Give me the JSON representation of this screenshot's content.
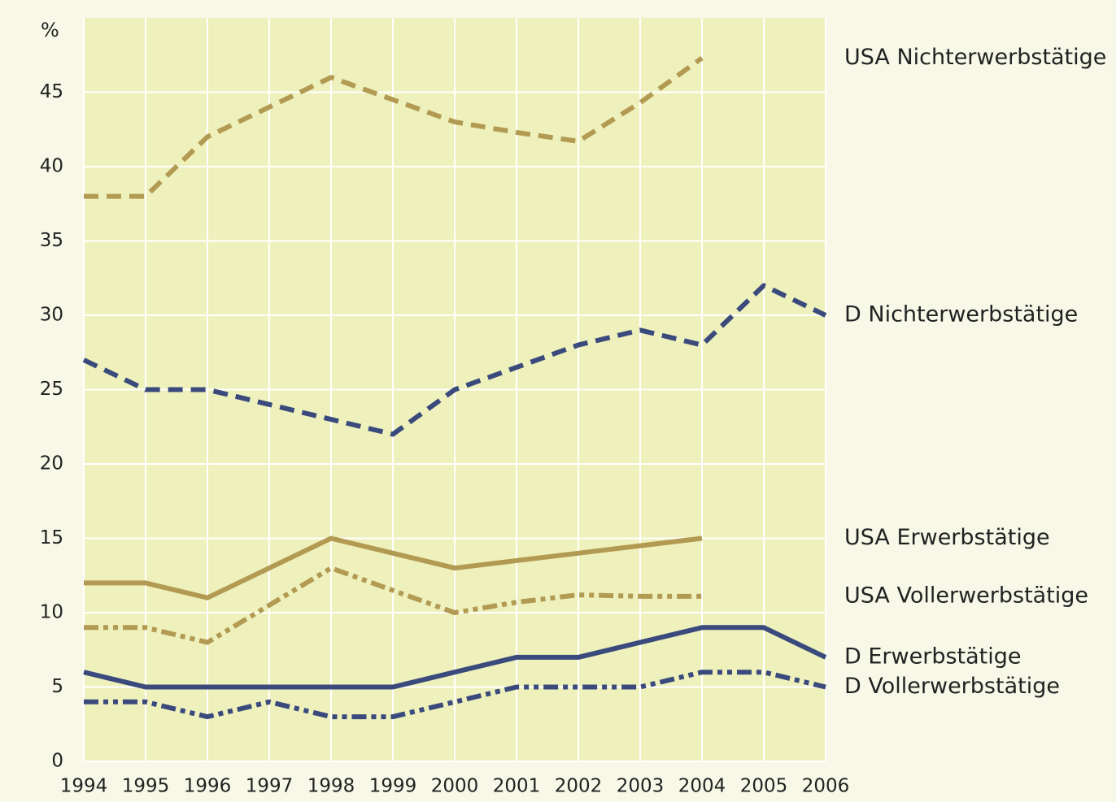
{
  "chart_data": {
    "type": "line",
    "y_label": "%",
    "x": [
      1994,
      1995,
      1996,
      1997,
      1998,
      1999,
      2000,
      2001,
      2002,
      2003,
      2004,
      2005,
      2006
    ],
    "xlim": [
      1994,
      2006
    ],
    "xticks": [
      1994,
      1995,
      1996,
      1997,
      1998,
      1999,
      2000,
      2001,
      2002,
      2003,
      2004,
      2005,
      2006
    ],
    "ylim": [
      0,
      50
    ],
    "yticks": [
      0,
      5,
      10,
      15,
      20,
      25,
      30,
      35,
      40,
      45
    ],
    "grid": true,
    "series": [
      {
        "name": "USA Nichterwerbstätige",
        "color": "#b39a52",
        "style": "dashed",
        "values": [
          38,
          38,
          42,
          44,
          46,
          44.5,
          43,
          42.3,
          41.7,
          44.3,
          47.3,
          null,
          null
        ]
      },
      {
        "name": "D Nichterwerbstätige",
        "color": "#3b4a7d",
        "style": "dashed",
        "values": [
          27,
          25,
          25,
          24,
          23,
          22,
          25,
          26.5,
          28,
          29,
          28,
          32,
          30
        ]
      },
      {
        "name": "USA Erwerbstätige",
        "color": "#b39a52",
        "style": "solid",
        "values": [
          12,
          12,
          11,
          13,
          15,
          14,
          13,
          13.5,
          14,
          14.5,
          15,
          null,
          null
        ]
      },
      {
        "name": "USA Vollerwerbstätige",
        "color": "#b39a52",
        "style": "dashdot",
        "values": [
          9,
          9,
          8,
          10.5,
          13,
          11.5,
          10,
          10.7,
          11.2,
          11.1,
          11.1,
          null,
          null
        ]
      },
      {
        "name": "D Erwerbstätige",
        "color": "#3b4a7d",
        "style": "solid",
        "values": [
          6,
          5,
          5,
          5,
          5,
          5,
          6,
          7,
          7,
          8,
          9,
          9,
          7
        ]
      },
      {
        "name": "D Vollerwerbstätige",
        "color": "#3b4a7d",
        "style": "dashdot",
        "values": [
          4,
          4,
          3,
          4,
          3,
          3,
          4,
          5,
          5,
          5,
          6,
          6,
          5
        ]
      }
    ]
  }
}
